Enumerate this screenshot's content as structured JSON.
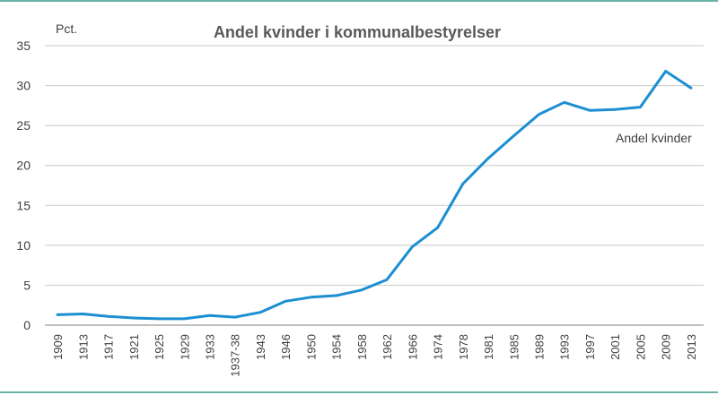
{
  "chart_data": {
    "type": "line",
    "title": "Andel kvinder i kommunalbestyrelser",
    "ylabel": "Pct.",
    "xlabel": "",
    "ylim": [
      0,
      35
    ],
    "yticks": [
      0,
      5,
      10,
      15,
      20,
      25,
      30,
      35
    ],
    "grid": true,
    "categories": [
      "1909",
      "1913",
      "1917",
      "1921",
      "1925",
      "1929",
      "1933",
      "1937-38",
      "1943",
      "1946",
      "1950",
      "1954",
      "1958",
      "1962",
      "1966",
      "1974",
      "1978",
      "1981",
      "1985",
      "1989",
      "1993",
      "1997",
      "2001",
      "2005",
      "2009",
      "2013"
    ],
    "series": [
      {
        "name": "Andel kvinder",
        "color": "#1b8fd2",
        "values": [
          1.3,
          1.4,
          1.1,
          0.9,
          0.8,
          0.8,
          1.2,
          1.0,
          1.6,
          3.0,
          3.5,
          3.7,
          4.4,
          5.7,
          9.8,
          12.2,
          17.7,
          20.9,
          23.7,
          26.4,
          27.9,
          26.9,
          27.0,
          27.3,
          31.8,
          29.7
        ]
      }
    ]
  },
  "frame_color": "#3a9a8a"
}
